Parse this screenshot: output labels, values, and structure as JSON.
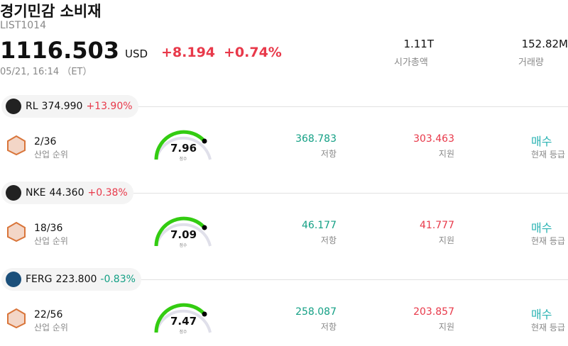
{
  "header": {
    "title": "경기민감 소비재",
    "code": "LIST1014",
    "price": "1116.503",
    "currency": "USD",
    "change": "+8.194",
    "change_pct": "+0.74%",
    "datetime": "05/21, 16:14 （ET）",
    "market_cap": {
      "value": "1.11T",
      "label": "시가총액"
    },
    "volume": {
      "value": "152.82M",
      "label": "거래량"
    }
  },
  "stocks": [
    {
      "ticker": "RL",
      "price": "374.990",
      "change_pct": "+13.90%",
      "rank": "2/36",
      "rank_label": "산업 순위",
      "score": "7.96",
      "score_label": "점수",
      "resistance": "368.783",
      "resistance_label": "저항",
      "support": "303.463",
      "support_label": "지원",
      "rating": "매수",
      "rating_label": "현재 등급"
    },
    {
      "ticker": "NKE",
      "price": "44.360",
      "change_pct": "+0.38%",
      "rank": "18/36",
      "rank_label": "산업 순위",
      "score": "7.09",
      "score_label": "점수",
      "resistance": "46.177",
      "resistance_label": "저항",
      "support": "41.777",
      "support_label": "지원",
      "rating": "매수",
      "rating_label": "현재 등급"
    },
    {
      "ticker": "FERG",
      "price": "223.800",
      "change_pct": "-0.83%",
      "rank": "22/56",
      "rank_label": "산업 순위",
      "score": "7.47",
      "score_label": "점수",
      "resistance": "258.087",
      "resistance_label": "저항",
      "support": "203.857",
      "support_label": "지원",
      "rating": "매수",
      "rating_label": "현재 등급"
    }
  ]
}
